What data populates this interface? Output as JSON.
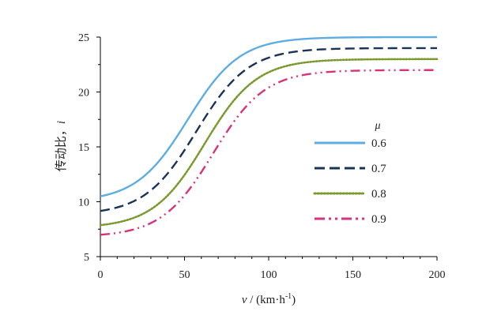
{
  "chart_data": {
    "type": "line",
    "title": "",
    "xlabel_var": "v",
    "xlabel_unit": " / (km·h",
    "xlabel_exp": "-1",
    "xlabel_close": ")",
    "ylabel_text": "传动比，",
    "ylabel_var": "i",
    "xlim": [
      0,
      200
    ],
    "ylim": [
      5,
      25
    ],
    "x_ticks": [
      0,
      50,
      100,
      150,
      200
    ],
    "y_ticks": [
      5,
      10,
      15,
      20,
      25
    ],
    "legend_title": "μ",
    "legend_position": "right",
    "series": [
      {
        "name": "0.6",
        "color": "#5DADE2",
        "style": "solid",
        "i_min": 10.0,
        "i_max": 25.0,
        "midpoint": 52,
        "steepness": 0.065
      },
      {
        "name": "0.7",
        "color": "#1B3358",
        "style": "dashed",
        "i_min": 8.8,
        "i_max": 24.0,
        "midpoint": 57,
        "steepness": 0.065
      },
      {
        "name": "0.8",
        "color": "#7A9A2E",
        "style": "dotted",
        "i_min": 7.6,
        "i_max": 23.0,
        "midpoint": 62,
        "steepness": 0.065
      },
      {
        "name": "0.9",
        "color": "#D6337A",
        "style": "dashdot",
        "i_min": 6.8,
        "i_max": 22.0,
        "midpoint": 67,
        "steepness": 0.065
      }
    ]
  }
}
